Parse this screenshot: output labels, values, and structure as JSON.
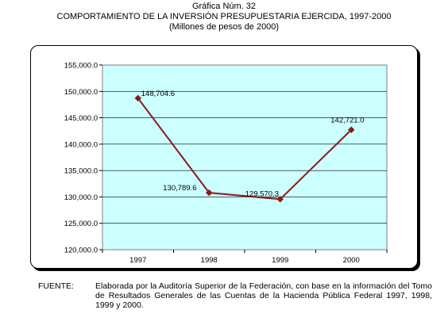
{
  "header": {
    "line1": "Gráfica Núm. 32",
    "line2": "COMPORTAMIENTO DE LA INVERSIÓN PRESUPUESTARIA EJERCIDA, 1997-2000",
    "line3": "(Millones de pesos de 2000)"
  },
  "chart_data": {
    "type": "line",
    "categories": [
      "1997",
      "1998",
      "1999",
      "2000"
    ],
    "series": [
      {
        "values": [
          148704.6,
          130789.6,
          129570.3,
          142721.0
        ]
      }
    ],
    "data_labels": [
      "148,704.6",
      "130,789.6",
      "129,570.3",
      "142,721.0"
    ],
    "y_ticks": [
      "120,000.0",
      "125,000.0",
      "130,000.0",
      "135,000.0",
      "140,000.0",
      "145,000.0",
      "150,000.0",
      "155,000.0"
    ],
    "ylim": [
      120000,
      155000
    ],
    "grid": true,
    "legend": "none",
    "colors": {
      "plot_bg": "#ccffff",
      "line": "#8b1a1a",
      "marker": "#8b1a1a"
    }
  },
  "footer": {
    "label": "FUENTE:",
    "text": "Elaborada por la Auditoría Superior de la Federación, con base en la información del Tomo de Resultados Generales de las Cuentas de la Hacienda Pública Federal 1997, 1998, 1999 y 2000."
  }
}
